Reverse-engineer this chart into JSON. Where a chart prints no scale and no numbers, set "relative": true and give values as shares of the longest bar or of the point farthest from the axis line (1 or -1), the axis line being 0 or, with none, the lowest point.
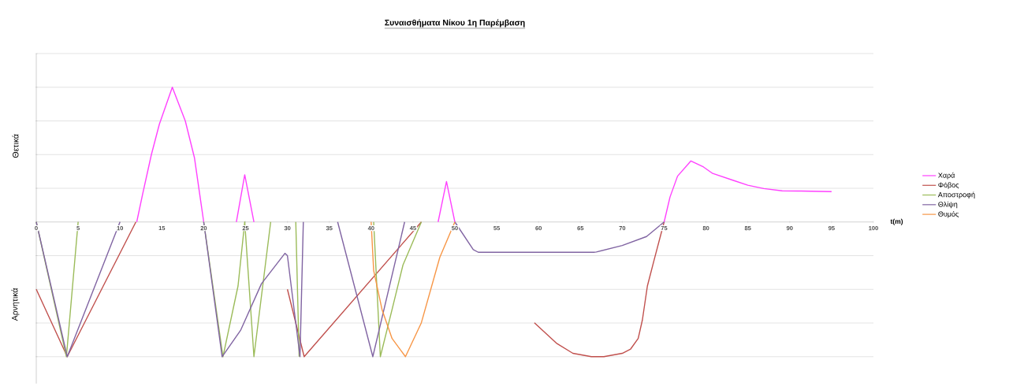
{
  "chart_data": {
    "type": "line",
    "title": "Συναισθήματα Νίκου 1η Παρέμβαση",
    "xlabel": "t(m)",
    "relative": true,
    "xlim": [
      0,
      100
    ],
    "xticks": [
      0,
      5,
      10,
      15,
      20,
      25,
      30,
      35,
      40,
      45,
      50,
      55,
      60,
      65,
      70,
      75,
      80,
      85,
      90,
      95,
      100
    ],
    "tick_labels": "x",
    "grid": "y",
    "legend": "right",
    "line_style": "solid",
    "annotations": [
      "Θετικά",
      "Αρνητικά"
    ],
    "series": [
      {
        "name": "Χαρά",
        "color": "#ff40ff",
        "x": [
          12,
          12.7,
          13.75,
          14.7,
          16.25,
          17.8,
          18.9,
          20,
          20.5,
          23.9,
          24.9,
          26,
          37,
          48,
          49,
          50,
          62,
          75,
          75.7,
          76.6,
          78.2,
          79.7,
          80.8,
          83.2,
          85,
          86.9,
          89.1,
          91,
          95
        ],
        "values": [
          0,
          0.205,
          0.5,
          0.725,
          1,
          0.75,
          0.475,
          0,
          null,
          0,
          0.35,
          0,
          null,
          0,
          0.3,
          0,
          null,
          0,
          0.185,
          0.34,
          0.453,
          0.408,
          0.36,
          0.31,
          0.273,
          0.248,
          0.231,
          0.23,
          0.225
        ]
      },
      {
        "name": "Φόβος",
        "color": "#c0504d",
        "x": [
          0,
          3.7,
          11.9,
          20,
          30,
          32,
          46,
          52,
          59.5,
          62.2,
          64.1,
          66.3,
          67.8,
          70,
          71,
          71.9,
          72.4,
          73,
          73.8,
          75
        ],
        "values": [
          -0.5,
          -1,
          0,
          null,
          -0.5,
          -1,
          0,
          null,
          -0.748,
          -0.903,
          -0.975,
          -1,
          -1,
          -0.975,
          -0.943,
          -0.865,
          -0.728,
          -0.475,
          -0.283,
          0
        ]
      },
      {
        "name": "Αποστροφή",
        "color": "#9bbb59",
        "x": [
          0,
          3.6,
          5,
          12,
          20,
          22.3,
          24.1,
          24.9,
          26,
          28,
          29,
          31,
          31.4,
          35,
          40.3,
          41.1,
          42.5,
          43.8,
          46
        ],
        "values": [
          0,
          -1,
          0,
          null,
          0,
          -1,
          -0.475,
          0,
          -1,
          0,
          null,
          0,
          -1,
          null,
          0,
          -1,
          -0.65,
          -0.32,
          0
        ]
      },
      {
        "name": "Θλίψη",
        "color": "#8064a2",
        "x": [
          0,
          3.7,
          10,
          15,
          20,
          22.2,
          24.4,
          26.9,
          29.7,
          30,
          31.5,
          31.9,
          34,
          36,
          40.2,
          44,
          47,
          50,
          52.2,
          52.8,
          66.6,
          66.9,
          70,
          72.9,
          75
        ],
        "values": [
          0,
          -1,
          0,
          null,
          0,
          -1,
          -0.805,
          -0.458,
          -0.233,
          -0.25,
          -1,
          0,
          null,
          0,
          -1,
          0,
          null,
          0,
          -0.205,
          -0.225,
          -0.225,
          -0.223,
          -0.175,
          -0.108,
          0
        ]
      },
      {
        "name": "Θυμός",
        "color": "#f79646",
        "x": [
          40,
          40.3,
          41.3,
          42.5,
          44.1,
          46,
          48.2,
          50
        ],
        "values": [
          0,
          -0.36,
          -0.65,
          -0.865,
          -1,
          -0.748,
          -0.263,
          0
        ]
      }
    ]
  }
}
